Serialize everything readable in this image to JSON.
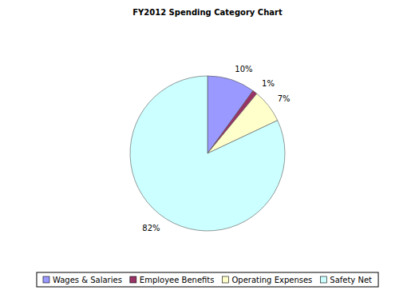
{
  "chart_data": {
    "type": "pie",
    "title": "FY2012 Spending Category Chart",
    "categories": [
      "Wages & Salaries",
      "Employee Benefits",
      "Operating Expenses",
      "Safety Net"
    ],
    "values": [
      10,
      1,
      7,
      82
    ],
    "value_labels": [
      "10%",
      "1%",
      "7%",
      "82%"
    ],
    "colors": [
      "#9999ff",
      "#993366",
      "#ffffcc",
      "#ccffff"
    ],
    "data_labels": true,
    "legend": "bottom"
  }
}
